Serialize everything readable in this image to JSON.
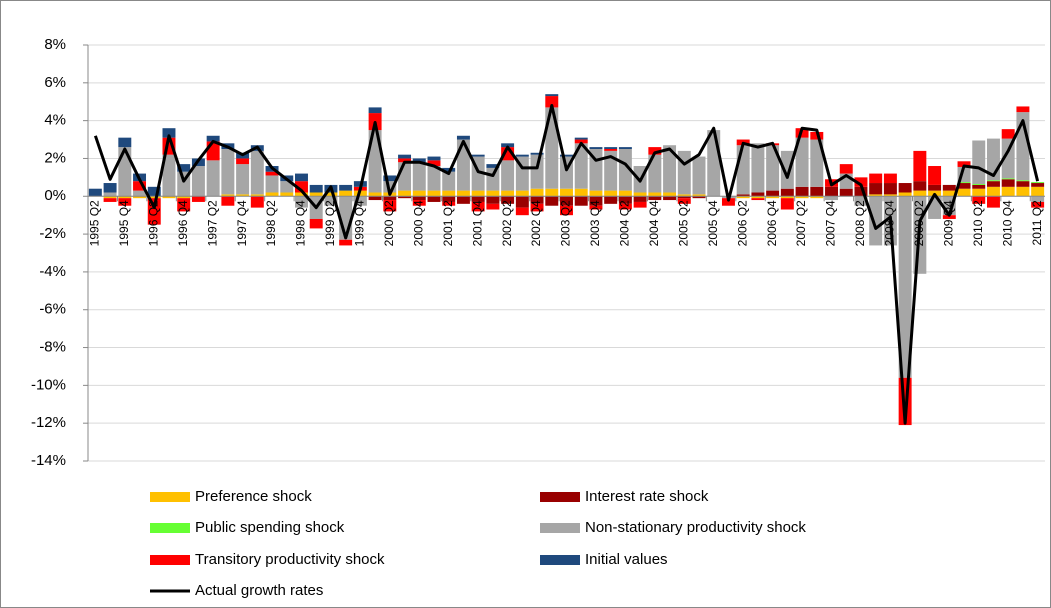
{
  "chart_data": {
    "type": "bar",
    "categories": [
      "1995 Q2",
      null,
      "1995 Q4",
      null,
      "1996 Q2",
      null,
      "1996 Q4",
      null,
      "1997 Q2",
      null,
      "1997 Q4",
      null,
      "1998 Q2",
      null,
      "1998 Q4",
      null,
      "1999 Q2",
      null,
      "1999 Q4",
      null,
      "2000 Q2",
      null,
      "2000 Q4",
      null,
      "2001 Q2",
      null,
      "2001 Q4",
      null,
      "2002 Q2",
      null,
      "2002 Q4",
      null,
      "2003 Q2",
      null,
      "2003 Q4",
      null,
      "2004 Q2",
      null,
      "2004 Q4",
      null,
      "2005 Q2",
      null,
      "2005 Q4",
      null,
      "2006 Q2",
      null,
      "2006 Q4",
      null,
      "2007 Q2",
      null,
      "2007 Q4",
      null,
      "2008 Q2",
      null,
      "2008 Q4",
      null,
      "2009 Q2",
      null,
      "2009 Q4",
      null,
      "2010 Q2",
      null,
      "2010 Q4",
      null,
      "2011 Q2"
    ],
    "series": [
      {
        "name": "Preference shock",
        "color": "#ffc000",
        "values": [
          0.0,
          -0.1,
          -0.1,
          -0.1,
          -0.1,
          -0.1,
          -0.1,
          0.0,
          0.0,
          0.1,
          0.1,
          0.1,
          0.2,
          0.2,
          0.2,
          0.2,
          0.2,
          0.3,
          0.3,
          0.2,
          0.2,
          0.3,
          0.3,
          0.3,
          0.3,
          0.3,
          0.3,
          0.3,
          0.3,
          0.3,
          0.4,
          0.4,
          0.4,
          0.4,
          0.3,
          0.3,
          0.3,
          0.2,
          0.2,
          0.2,
          0.1,
          0.1,
          0.0,
          0.0,
          -0.1,
          -0.1,
          -0.1,
          -0.1,
          -0.1,
          -0.1,
          0.0,
          0.0,
          0.0,
          0.1,
          0.1,
          0.2,
          0.3,
          0.3,
          0.3,
          0.4,
          0.4,
          0.5,
          0.5,
          0.5,
          0.5
        ]
      },
      {
        "name": "Interest rate shock",
        "color": "#990000",
        "values": [
          0,
          0,
          0,
          0,
          0,
          0,
          0,
          0,
          0,
          0,
          0,
          0,
          0,
          0,
          0,
          0,
          0,
          0,
          0,
          -0.2,
          -0.2,
          -0.1,
          -0.2,
          -0.3,
          -0.3,
          -0.4,
          -0.3,
          -0.4,
          -0.4,
          -0.6,
          -0.4,
          -0.5,
          -0.5,
          -0.5,
          -0.5,
          -0.4,
          -0.4,
          -0.3,
          -0.2,
          -0.2,
          -0.1,
          -0.1,
          0.0,
          0.0,
          0.1,
          0.2,
          0.3,
          0.4,
          0.5,
          0.5,
          0.5,
          0.4,
          0.5,
          0.6,
          0.6,
          0.5,
          0.5,
          0.3,
          0.3,
          0.3,
          0.2,
          0.3,
          0.4,
          0.3,
          0.2
        ]
      },
      {
        "name": "Public spending shock",
        "color": "#66ff33",
        "values": [
          0,
          0,
          0,
          0,
          0,
          0,
          0,
          0,
          0,
          0,
          0,
          0,
          0,
          0,
          0,
          0,
          0,
          0,
          0,
          0,
          0,
          0,
          0,
          0,
          0,
          0,
          0,
          0,
          0,
          0,
          0,
          0,
          0,
          0,
          0,
          0,
          0,
          0,
          0,
          0,
          0,
          0,
          0,
          0,
          0,
          0,
          0,
          0,
          0,
          0,
          0,
          0,
          0,
          0,
          0,
          0,
          0,
          0,
          0,
          0.05,
          0.05,
          0.05,
          0.05,
          0.05,
          0.05
        ]
      },
      {
        "name": "Non-stationary productivity shock",
        "color": "#a6a6a6",
        "values": [
          0.0,
          0.2,
          2.6,
          0.3,
          0.0,
          2.2,
          1.3,
          1.6,
          1.9,
          2.4,
          1.6,
          2.3,
          0.9,
          0.6,
          -0.6,
          -1.2,
          -0.5,
          -2.3,
          -0.5,
          3.3,
          0.6,
          1.5,
          1.5,
          1.3,
          1.0,
          2.7,
          1.8,
          1.2,
          1.6,
          1.8,
          1.8,
          4.3,
          1.7,
          2.4,
          2.2,
          2.1,
          2.2,
          1.4,
          2.0,
          2.5,
          2.3,
          2.0,
          3.5,
          -0.1,
          2.6,
          2.6,
          2.4,
          2.0,
          2.6,
          2.5,
          -0.2,
          0.8,
          -0.5,
          -2.6,
          -2.6,
          -9.6,
          -4.1,
          -1.2,
          -1.0,
          0.8,
          2.3,
          2.2,
          2.1,
          3.6,
          -0.3
        ]
      },
      {
        "name": "Transitory productivity shock",
        "color": "#ff0000",
        "values": [
          0,
          -0.2,
          -0.4,
          0.5,
          -1.4,
          0.9,
          -0.7,
          -0.3,
          1.0,
          -0.5,
          0.3,
          -0.6,
          0.2,
          0.0,
          0.6,
          -0.5,
          0.0,
          -0.3,
          0.2,
          0.9,
          -0.6,
          0.2,
          -0.3,
          0.3,
          -0.2,
          0.0,
          -0.5,
          -0.3,
          0.7,
          -0.4,
          -0.4,
          0.6,
          -0.5,
          0.2,
          -0.2,
          0.1,
          -0.3,
          -0.3,
          0.4,
          0.0,
          -0.3,
          0.0,
          0.0,
          -0.4,
          0.3,
          -0.1,
          0.1,
          -0.6,
          0.5,
          0.4,
          0.4,
          0.5,
          0.5,
          0.5,
          0.5,
          -2.5,
          1.6,
          1.0,
          -0.2,
          0.3,
          -0.4,
          -0.6,
          0.5,
          0.3,
          -0.3
        ]
      },
      {
        "name": "Initial values",
        "color": "#1f497d",
        "values": [
          0.4,
          0.5,
          0.5,
          0.4,
          0.5,
          0.5,
          0.4,
          0.4,
          0.3,
          0.3,
          0.3,
          0.3,
          0.3,
          0.3,
          0.4,
          0.4,
          0.4,
          0.3,
          0.3,
          0.3,
          0.3,
          0.2,
          0.2,
          0.2,
          0.2,
          0.2,
          0.1,
          0.2,
          0.2,
          0.1,
          0.1,
          0.1,
          0.1,
          0.1,
          0.1,
          0.1,
          0.1,
          0,
          0,
          0,
          0,
          0,
          0,
          0,
          0,
          0,
          0,
          0,
          0,
          0,
          0,
          0,
          0,
          0,
          0,
          0,
          0,
          0,
          0,
          0,
          0,
          0,
          0,
          0,
          0
        ]
      }
    ],
    "line": {
      "name": "Actual growth rates",
      "color": "#000000",
      "values": [
        3.2,
        0.9,
        2.5,
        0.9,
        -0.6,
        3.2,
        0.8,
        1.9,
        2.9,
        2.6,
        2.2,
        2.6,
        1.5,
        0.9,
        0.3,
        -0.6,
        0.5,
        -2.2,
        0.4,
        3.9,
        0.1,
        1.8,
        1.8,
        1.6,
        1.2,
        2.9,
        1.3,
        1.1,
        2.6,
        1.5,
        1.5,
        4.8,
        1.4,
        2.8,
        1.9,
        2.1,
        1.7,
        0.8,
        2.3,
        2.5,
        1.7,
        2.2,
        3.6,
        -0.2,
        2.8,
        2.6,
        2.8,
        1.0,
        3.6,
        3.5,
        0.6,
        1.1,
        0.6,
        -1.7,
        -1.1,
        -12.0,
        -1.3,
        0.1,
        -1.0,
        1.6,
        1.5,
        1.1,
        2.4,
        4.0,
        0.8
      ]
    },
    "ylim": [
      -14,
      8
    ],
    "yticks": [
      {
        "value": -14,
        "label": "-14%"
      },
      {
        "value": -12,
        "label": "-12%"
      },
      {
        "value": -10,
        "label": "-10%"
      },
      {
        "value": -8,
        "label": "-8%"
      },
      {
        "value": -6,
        "label": "-6%"
      },
      {
        "value": -4,
        "label": "-4%"
      },
      {
        "value": -2,
        "label": "-2%"
      },
      {
        "value": 0,
        "label": "0%"
      },
      {
        "value": 2,
        "label": "2%"
      },
      {
        "value": 4,
        "label": "4%"
      },
      {
        "value": 6,
        "label": "6%"
      },
      {
        "value": 8,
        "label": "8%"
      }
    ],
    "grid": true,
    "legend": "bottom"
  }
}
